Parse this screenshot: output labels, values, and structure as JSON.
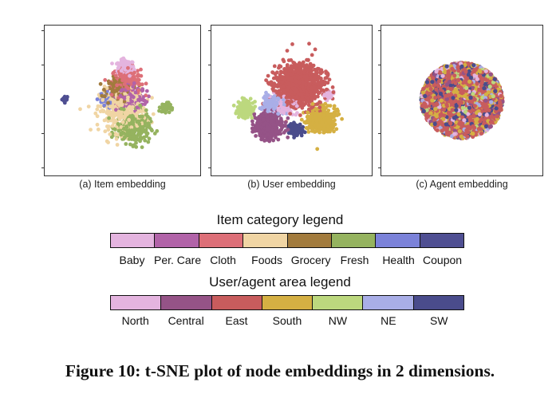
{
  "chart_data": [
    {
      "type": "scatter",
      "title": "Item embedding",
      "caption": "(a) Item embedding",
      "legend": "Item category legend",
      "clusters": [
        {
          "category": "Coupon",
          "cx": -16,
          "cy": 0.5,
          "spread": 1,
          "count": 20
        },
        {
          "category": "Baby",
          "cx": 1,
          "cy": 9.5,
          "spread": 2.5,
          "count": 160
        },
        {
          "category": "Cloth",
          "cx": 1,
          "cy": 5.5,
          "spread": 4.5,
          "count": 230
        },
        {
          "category": "Grocery",
          "cx": -1,
          "cy": 3,
          "spread": 4,
          "count": 180
        },
        {
          "category": "Per. Care",
          "cx": 2,
          "cy": 1,
          "spread": 5,
          "count": 160
        },
        {
          "category": "Health",
          "cx": -5,
          "cy": 0,
          "spread": 2.5,
          "count": 40
        },
        {
          "category": "Foods",
          "cx": 0,
          "cy": -3,
          "spread": 7,
          "count": 380
        },
        {
          "category": "Fresh",
          "cx": 3,
          "cy": -8,
          "spread": 5,
          "count": 300
        },
        {
          "category": "Fresh",
          "cx": 12,
          "cy": -2,
          "spread": 1.5,
          "count": 60
        }
      ]
    },
    {
      "type": "scatter",
      "title": "User embedding",
      "caption": "(b) User embedding",
      "legend": "User/agent area legend",
      "clusters": [
        {
          "category": "East",
          "cx": 2,
          "cy": 4.5,
          "spread": 7,
          "count": 900
        },
        {
          "category": "NW",
          "cx": -12.5,
          "cy": -2.5,
          "spread": 2.5,
          "count": 170
        },
        {
          "category": "NE",
          "cx": -5,
          "cy": -1,
          "spread": 3,
          "count": 140
        },
        {
          "category": "North",
          "cx": -2,
          "cy": -1.5,
          "spread": 3,
          "count": 120
        },
        {
          "category": "North",
          "cx": 10,
          "cy": 1.5,
          "spread": 1.2,
          "count": 40
        },
        {
          "category": "Central",
          "cx": -6,
          "cy": -7.5,
          "spread": 4,
          "count": 440
        },
        {
          "category": "SW",
          "cx": 1,
          "cy": -8.5,
          "spread": 2,
          "count": 140
        },
        {
          "category": "South",
          "cx": 8,
          "cy": -5.5,
          "spread": 4,
          "count": 420
        }
      ]
    },
    {
      "type": "scatter",
      "title": "Agent embedding",
      "caption": "(c) Agent embedding",
      "legend": "User/agent area legend",
      "clusters": [
        {
          "category": "East",
          "cx": 0,
          "cy": 0,
          "spread": 11,
          "count": 1800
        },
        {
          "category": "South",
          "cx": 0,
          "cy": 0,
          "spread": 11,
          "count": 700
        },
        {
          "category": "SW",
          "cx": 0,
          "cy": 0,
          "spread": 11,
          "count": 550
        },
        {
          "category": "Central",
          "cx": 0,
          "cy": 0,
          "spread": 11,
          "count": 300
        },
        {
          "category": "NW",
          "cx": 0,
          "cy": 0,
          "spread": 11,
          "count": 220
        },
        {
          "category": "NE",
          "cx": 0,
          "cy": 0,
          "spread": 11,
          "count": 180
        },
        {
          "category": "North",
          "cx": 0,
          "cy": 0,
          "spread": 11,
          "count": 180
        }
      ]
    }
  ],
  "legends": {
    "item": {
      "title": "Item category legend",
      "entries": [
        {
          "label": "Baby",
          "color": "#e4b4df"
        },
        {
          "label": "Per. Care",
          "color": "#b163a8"
        },
        {
          "label": "Cloth",
          "color": "#dd6f78"
        },
        {
          "label": "Foods",
          "color": "#f0d5a4"
        },
        {
          "label": "Grocery",
          "color": "#a27b3d"
        },
        {
          "label": "Fresh",
          "color": "#95b35f"
        },
        {
          "label": "Health",
          "color": "#7b82d9"
        },
        {
          "label": "Coupon",
          "color": "#4f4f92"
        }
      ]
    },
    "area": {
      "title": "User/agent area legend",
      "entries": [
        {
          "label": "North",
          "color": "#e4b4df"
        },
        {
          "label": "Central",
          "color": "#955387"
        },
        {
          "label": "East",
          "color": "#c85c5d"
        },
        {
          "label": "South",
          "color": "#d5b043"
        },
        {
          "label": "NW",
          "color": "#bcd87e"
        },
        {
          "label": "NE",
          "color": "#a9aee7"
        },
        {
          "label": "SW",
          "color": "#4a4c8c"
        }
      ]
    }
  },
  "figure_caption": "Figure 10: t-SNE plot of node embeddings in 2 dimensions."
}
